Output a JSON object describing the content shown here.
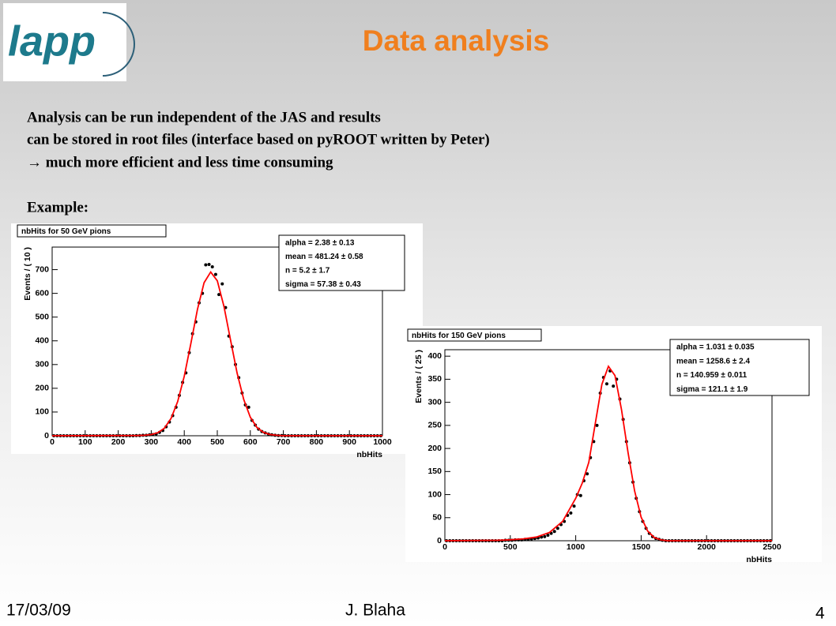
{
  "header": {
    "logo": "lapp",
    "title": "Data analysis"
  },
  "body": {
    "lines": [
      "Analysis can be run independent of the JAS and results",
      "can be stored in root files (interface based on pyROOT written by Peter)",
      "→ much more efficient and less time consuming"
    ],
    "example": "Example:"
  },
  "footer": {
    "date": "17/03/09",
    "author": "J. Blaha",
    "page": "4"
  },
  "chart_data": [
    {
      "type": "scatter",
      "title": "nbHits for 50 GeV pions",
      "xlabel": "nbHits",
      "ylabel": "Events / ( 10 )",
      "stats": [
        "alpha =  2.38 ± 0.13",
        "mean =  481.24 ± 0.58",
        "n =  5.2 ± 1.7",
        "sigma =  57.38 ± 0.43"
      ],
      "xlim": [
        0,
        1000
      ],
      "ylim": [
        0,
        795
      ],
      "xticks": [
        0,
        100,
        200,
        300,
        400,
        500,
        600,
        700,
        800,
        900,
        1000
      ],
      "yticks": [
        0,
        100,
        200,
        300,
        400,
        500,
        600,
        700
      ],
      "series": [
        {
          "color": "#000000",
          "x": [
            5,
            15,
            25,
            35,
            45,
            55,
            65,
            75,
            85,
            95,
            105,
            115,
            125,
            135,
            145,
            155,
            165,
            175,
            185,
            195,
            205,
            215,
            225,
            235,
            245,
            255,
            265,
            275,
            285,
            295,
            305,
            315,
            325,
            335,
            345,
            355,
            365,
            375,
            385,
            395,
            405,
            415,
            425,
            435,
            445,
            455,
            465,
            475,
            485,
            495,
            505,
            515,
            525,
            535,
            545,
            555,
            565,
            575,
            585,
            595,
            605,
            615,
            625,
            635,
            645,
            655,
            665,
            675,
            685,
            695,
            705,
            715,
            725,
            735,
            745,
            755,
            765,
            775,
            785,
            795,
            805,
            815,
            825,
            835,
            845,
            855,
            865,
            875,
            885,
            895,
            905,
            915,
            925,
            935,
            945,
            955,
            965,
            975,
            985,
            995
          ],
          "values": [
            0,
            0,
            0,
            0,
            0,
            0,
            0,
            0,
            0,
            0,
            0,
            0,
            0,
            0,
            0,
            0,
            0,
            0,
            0,
            0,
            0,
            0,
            0,
            0,
            0,
            1,
            1,
            2,
            2,
            4,
            5,
            8,
            14,
            22,
            38,
            58,
            85,
            120,
            170,
            225,
            265,
            350,
            430,
            480,
            560,
            600,
            720,
            722,
            712,
            680,
            595,
            640,
            540,
            420,
            375,
            300,
            245,
            180,
            130,
            120,
            65,
            45,
            28,
            18,
            12,
            7,
            4,
            2,
            1,
            1,
            0,
            0,
            0,
            0,
            0,
            0,
            0,
            0,
            0,
            0,
            0,
            0,
            0,
            0,
            0,
            0,
            0,
            0,
            0,
            0,
            0,
            0,
            0,
            0,
            0,
            0,
            0,
            0,
            0,
            0
          ]
        },
        {
          "type": "line",
          "color": "#ff0000",
          "x": [
            0,
            260,
            280,
            300,
            320,
            340,
            360,
            380,
            400,
            420,
            440,
            460,
            480,
            500,
            520,
            540,
            560,
            580,
            600,
            620,
            640,
            660,
            680,
            700,
            1000
          ],
          "values": [
            0,
            1,
            2,
            5,
            13,
            32,
            73,
            144,
            251,
            389,
            533,
            645,
            690,
            653,
            546,
            404,
            264,
            153,
            78,
            35,
            14,
            5,
            2,
            0,
            0
          ]
        }
      ]
    },
    {
      "type": "scatter",
      "title": "nbHits for 150 GeV pions",
      "xlabel": "nbHits",
      "ylabel": "Events / ( 25 )",
      "stats": [
        "alpha =  1.031 ± 0.035",
        "mean =  1258.6 ± 2.4",
        "n =  140.959 ± 0.011",
        "sigma =  121.1 ± 1.9"
      ],
      "xlim": [
        0,
        2500
      ],
      "ylim": [
        0,
        414
      ],
      "xticks": [
        0,
        500,
        1000,
        1500,
        2000,
        2500
      ],
      "yticks": [
        0,
        50,
        100,
        150,
        200,
        250,
        300,
        350,
        400
      ],
      "series": [
        {
          "color": "#000000",
          "x": [
            12.5,
            37.5,
            62.5,
            87.5,
            112.5,
            137.5,
            162.5,
            187.5,
            212.5,
            237.5,
            262.5,
            287.5,
            312.5,
            337.5,
            362.5,
            387.5,
            412.5,
            437.5,
            462.5,
            487.5,
            512.5,
            537.5,
            562.5,
            587.5,
            612.5,
            637.5,
            662.5,
            687.5,
            712.5,
            737.5,
            762.5,
            787.5,
            812.5,
            837.5,
            862.5,
            887.5,
            912.5,
            937.5,
            962.5,
            987.5,
            1012.5,
            1037.5,
            1062.5,
            1087.5,
            1112.5,
            1137.5,
            1162.5,
            1187.5,
            1212.5,
            1237.5,
            1262.5,
            1287.5,
            1312.5,
            1337.5,
            1362.5,
            1387.5,
            1412.5,
            1437.5,
            1462.5,
            1487.5,
            1512.5,
            1537.5,
            1562.5,
            1587.5,
            1612.5,
            1637.5,
            1662.5,
            1687.5,
            1712.5,
            1737.5,
            1762.5,
            1787.5,
            1812.5,
            1837.5,
            1862.5,
            1887.5,
            1912.5,
            1937.5,
            1962.5,
            1987.5,
            2012.5,
            2037.5,
            2062.5,
            2087.5,
            2112.5,
            2137.5,
            2162.5,
            2187.5,
            2212.5,
            2237.5,
            2262.5,
            2287.5,
            2312.5,
            2337.5,
            2362.5,
            2387.5,
            2412.5,
            2437.5,
            2462.5,
            2487.5
          ],
          "values": [
            0,
            0,
            0,
            0,
            0,
            0,
            0,
            0,
            0,
            0,
            0,
            0,
            0,
            0,
            0,
            0,
            0,
            0,
            1,
            1,
            1,
            2,
            2,
            2,
            3,
            3,
            4,
            5,
            6,
            8,
            9,
            12,
            16,
            20,
            27,
            35,
            42,
            55,
            60,
            75,
            100,
            98,
            130,
            145,
            180,
            215,
            250,
            320,
            354,
            340,
            368,
            335,
            350,
            307,
            263,
            215,
            169,
            127,
            92,
            63,
            42,
            27,
            16,
            9,
            5,
            3,
            1,
            0,
            0,
            0,
            0,
            0,
            0,
            0,
            0,
            0,
            0,
            0,
            0,
            0,
            0,
            0,
            0,
            0,
            0,
            0,
            0,
            0,
            0,
            0,
            0,
            0,
            0,
            0,
            0,
            0,
            0,
            0,
            0,
            0
          ]
        },
        {
          "type": "line",
          "color": "#ff0000",
          "x": [
            0,
            400,
            500,
            600,
            700,
            800,
            900,
            1000,
            1050,
            1100,
            1150,
            1200,
            1250,
            1300,
            1350,
            1400,
            1450,
            1500,
            1550,
            1600,
            1650,
            1700,
            2500
          ],
          "values": [
            0,
            1,
            2,
            4,
            8,
            18,
            42,
            92,
            125,
            170,
            255,
            339,
            378,
            358,
            284,
            191,
            108,
            51,
            21,
            7,
            2,
            0,
            0
          ]
        }
      ]
    }
  ]
}
